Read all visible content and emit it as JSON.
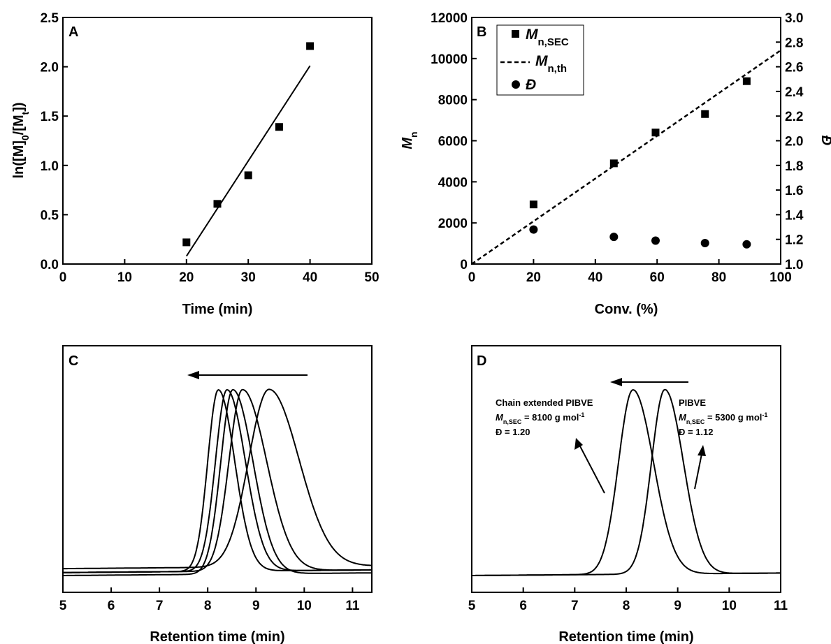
{
  "chart_data": [
    {
      "panel": "A",
      "type": "scatter",
      "xlabel": "Time (min)",
      "ylabel": "ln([M]0/[Mt])",
      "xlim": [
        0,
        50
      ],
      "ylim": [
        0,
        2.5
      ],
      "xticks": [
        "0",
        "10",
        "20",
        "30",
        "40",
        "50"
      ],
      "yticks": [
        "0.0",
        "0.5",
        "1.0",
        "1.5",
        "2.0",
        "2.5"
      ],
      "series": [
        {
          "marker": "square",
          "x": [
            20,
            25,
            30,
            35,
            40
          ],
          "y": [
            0.22,
            0.61,
            0.9,
            1.39,
            2.21
          ]
        },
        {
          "style": "fit-line",
          "x": [
            20,
            40
          ],
          "y": [
            0.08,
            2.01
          ]
        }
      ]
    },
    {
      "panel": "B",
      "type": "scatter",
      "xlabel": "Conv. (%)",
      "ylabel": "Mn",
      "y2label": "Đ",
      "xlim": [
        0,
        100
      ],
      "ylim": [
        0,
        12000
      ],
      "y2lim": [
        1.0,
        3.0
      ],
      "xticks": [
        "0",
        "20",
        "40",
        "60",
        "80",
        "100"
      ],
      "yticks": [
        "0",
        "2000",
        "4000",
        "6000",
        "8000",
        "10000",
        "12000"
      ],
      "y2ticks": [
        "1.0",
        "1.2",
        "1.4",
        "1.6",
        "1.8",
        "2.0",
        "2.2",
        "2.4",
        "2.6",
        "2.8",
        "3.0"
      ],
      "legend_position": "top-left",
      "series": [
        {
          "name": "Mn,SEC",
          "marker": "square",
          "axis": "left",
          "x": [
            20,
            46,
            59.5,
            75.5,
            89
          ],
          "y": [
            2900,
            4900,
            6400,
            7300,
            8900
          ]
        },
        {
          "name": "Mn,th",
          "style": "dashed",
          "axis": "left",
          "x": [
            0,
            100
          ],
          "y": [
            0,
            10400
          ]
        },
        {
          "name": "Đ",
          "marker": "circle",
          "axis": "right",
          "x": [
            20,
            46,
            59.5,
            75.5,
            89
          ],
          "y": [
            1.28,
            1.22,
            1.19,
            1.17,
            1.16
          ]
        }
      ]
    },
    {
      "panel": "C",
      "type": "line",
      "xlabel": "Retention time (min)",
      "xlim": [
        5,
        11.4
      ],
      "xticks": [
        "5",
        "6",
        "7",
        "8",
        "9",
        "10",
        "11"
      ],
      "arrow_direction": "left",
      "series": [
        {
          "peak_x": 8.22,
          "baseline": 0.1,
          "width_left": 0.22,
          "width_right": 0.34
        },
        {
          "peak_x": 8.4,
          "baseline": 0.1,
          "width_left": 0.24,
          "width_right": 0.38
        },
        {
          "peak_x": 8.52,
          "baseline": 0.085,
          "width_left": 0.25,
          "width_right": 0.42
        },
        {
          "peak_x": 8.72,
          "baseline": 0.1,
          "width_left": 0.28,
          "width_right": 0.5
        },
        {
          "peak_x": 9.27,
          "baseline": 0.12,
          "width_left": 0.42,
          "width_right": 0.62
        }
      ]
    },
    {
      "panel": "D",
      "type": "line",
      "xlabel": "Retention time (min)",
      "xlim": [
        5,
        11
      ],
      "xticks": [
        "5",
        "6",
        "7",
        "8",
        "9",
        "10",
        "11"
      ],
      "arrow_direction": "left",
      "annotations": [
        {
          "label": "Chain extended PIBVE",
          "mn_prefix": "M",
          "mn_sub": "n,SEC",
          "mn_value": " = 8100 g mol",
          "mn_sup": "-1",
          "dispersity": "Đ = 1.20"
        },
        {
          "label": "PIBVE",
          "mn_prefix": "M",
          "mn_sub": "n,SEC",
          "mn_value": " = 5300 g mol",
          "mn_sup": "-1",
          "dispersity": "Đ = 1.12"
        }
      ],
      "series": [
        {
          "name": "Chain extended PIBVE",
          "peak_x": 8.13,
          "baseline": 0.085,
          "width_left": 0.28,
          "width_right": 0.4
        },
        {
          "name": "PIBVE",
          "peak_x": 8.75,
          "baseline": 0.085,
          "width_left": 0.26,
          "width_right": 0.36
        }
      ]
    }
  ]
}
